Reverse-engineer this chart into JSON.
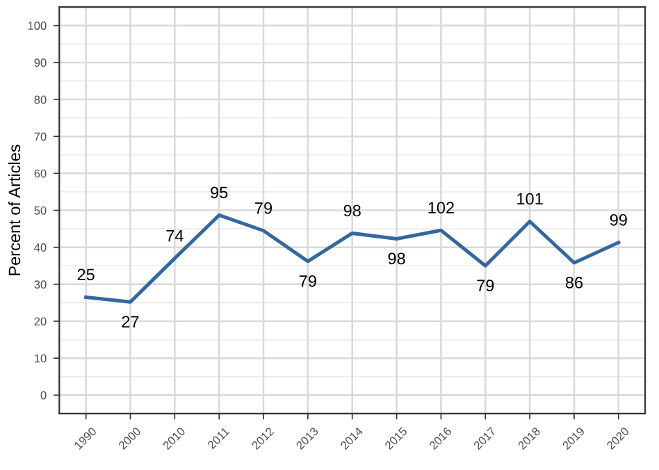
{
  "chart_data": {
    "type": "line",
    "ylabel": "Percent of Articles",
    "categories": [
      "1990",
      "2000",
      "2010",
      "2011",
      "2012",
      "2013",
      "2014",
      "2015",
      "2016",
      "2017",
      "2018",
      "2019",
      "2020"
    ],
    "series": [
      {
        "color": "#33689f",
        "values": [
          26.5,
          25.2,
          37,
          48.7,
          44.5,
          36.2,
          43.8,
          42.3,
          44.6,
          35,
          47,
          35.8,
          41.3
        ]
      }
    ],
    "annotations": [
      {
        "text": "25",
        "x": "1990",
        "y": 26.5
      },
      {
        "text": "27",
        "x": "2000",
        "y": 25.2
      },
      {
        "text": "74",
        "x": "2010",
        "y": 37
      },
      {
        "text": "95",
        "x": "2011",
        "y": 48.7
      },
      {
        "text": "79",
        "x": "2012",
        "y": 44.5
      },
      {
        "text": "79",
        "x": "2013",
        "y": 36.2
      },
      {
        "text": "98",
        "x": "2014",
        "y": 43.8
      },
      {
        "text": "98",
        "x": "2015",
        "y": 42.3
      },
      {
        "text": "102",
        "x": "2016",
        "y": 44.6
      },
      {
        "text": "79",
        "x": "2017",
        "y": 35
      },
      {
        "text": "101",
        "x": "2018",
        "y": 47
      },
      {
        "text": "86",
        "x": "2019",
        "y": 35.8
      },
      {
        "text": "99",
        "x": "2020",
        "y": 41.3
      }
    ],
    "ylim": [
      -5,
      105
    ],
    "yticks": [
      0,
      10,
      20,
      30,
      40,
      50,
      60,
      70,
      80,
      90,
      100
    ],
    "grid": true,
    "marker": "none",
    "line_style": "solid"
  }
}
